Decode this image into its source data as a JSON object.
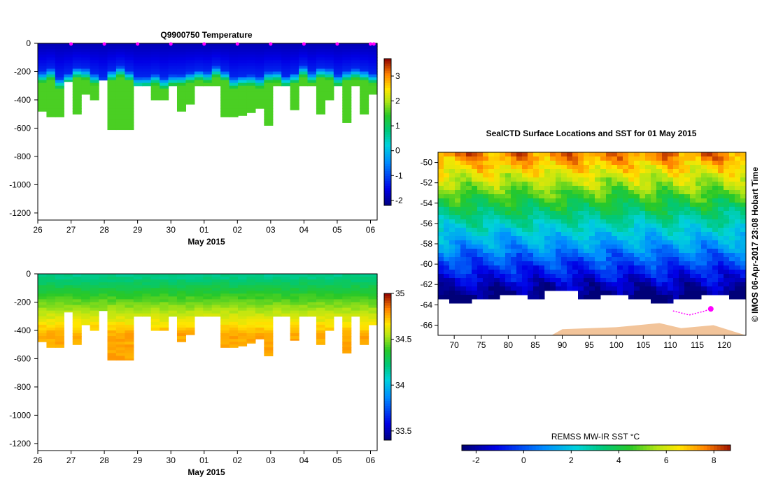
{
  "chart_data": [
    {
      "type": "heatmap",
      "title": "Q9900750  Temperature",
      "xlabel": "May 2015",
      "x_tick_labels": [
        "26",
        "27",
        "28",
        "29",
        "30",
        "01",
        "02",
        "03",
        "04",
        "05",
        "06"
      ],
      "y_tick_labels": [
        "0",
        "-200",
        "-400",
        "-600",
        "-800",
        "-1000",
        "-1200"
      ],
      "ylim": [
        -1250,
        0
      ],
      "colorbar": {
        "variable": "temperature",
        "min": -2.2,
        "max": 3.7,
        "tick_labels": [
          "3",
          "2",
          "1",
          "0",
          "-1",
          "-2"
        ],
        "tick_values": [
          3,
          2,
          1,
          0,
          -1,
          -2
        ]
      },
      "profile_max_depths_m": [
        480,
        520,
        520,
        270,
        500,
        360,
        400,
        260,
        610,
        610,
        610,
        300,
        300,
        400,
        400,
        300,
        480,
        430,
        300,
        300,
        300,
        520,
        520,
        510,
        490,
        460,
        580,
        300,
        300,
        470,
        300,
        300,
        500,
        400,
        300,
        560,
        300,
        500,
        360
      ],
      "surface_markers_x_day": [
        1,
        2,
        3,
        4,
        5,
        6,
        7,
        8,
        9,
        10,
        10.1
      ]
    },
    {
      "type": "heatmap",
      "title": "",
      "xlabel": "May 2015",
      "x_tick_labels": [
        "26",
        "27",
        "28",
        "29",
        "30",
        "01",
        "02",
        "03",
        "04",
        "05",
        "06"
      ],
      "y_tick_labels": [
        "0",
        "-200",
        "-400",
        "-600",
        "-800",
        "-1000",
        "-1200"
      ],
      "ylim": [
        -1250,
        0
      ],
      "colorbar": {
        "variable": "salinity",
        "min": 33.4,
        "max": 35.0,
        "tick_labels": [
          "35",
          "34.5",
          "34",
          "33.5"
        ],
        "tick_values": [
          35,
          34.5,
          34,
          33.5
        ]
      },
      "profile_max_depths_m": [
        480,
        520,
        520,
        270,
        500,
        360,
        400,
        260,
        610,
        610,
        610,
        300,
        300,
        400,
        400,
        300,
        480,
        430,
        300,
        300,
        300,
        520,
        520,
        510,
        490,
        460,
        580,
        300,
        300,
        470,
        300,
        300,
        500,
        400,
        300,
        560,
        300,
        500,
        360
      ]
    },
    {
      "type": "heatmap",
      "title": "SealCTD Surface Locations and SST for 01 May 2015",
      "xlabel": "",
      "ylabel": "",
      "x_tick_labels": [
        "70",
        "75",
        "80",
        "85",
        "90",
        "95",
        "100",
        "105",
        "110",
        "115",
        "120"
      ],
      "y_tick_labels": [
        "-50",
        "-52",
        "-54",
        "-56",
        "-58",
        "-60",
        "-62",
        "-64",
        "-66"
      ],
      "xlim": [
        67,
        124
      ],
      "ylim": [
        -67,
        -49
      ],
      "credit": "© IMOS 06-Apr-2017 23:08 Hobart Time",
      "colorbar": {
        "label": "REMSS MW-IR SST °C",
        "min": -2.6,
        "max": 8.7,
        "tick_labels": [
          "-2",
          "0",
          "2",
          "4",
          "6",
          "8"
        ],
        "tick_values": [
          -2,
          0,
          2,
          4,
          6,
          8
        ]
      },
      "seal_track": [
        {
          "lon": 110.5,
          "lat": -64.6
        },
        {
          "lon": 112.0,
          "lat": -64.8
        },
        {
          "lon": 113.5,
          "lat": -65.0
        },
        {
          "lon": 115.0,
          "lat": -64.8
        },
        {
          "lon": 116.5,
          "lat": -64.6
        },
        {
          "lon": 117.3,
          "lat": -64.4
        }
      ],
      "latest_position": {
        "lon": 117.5,
        "lat": -64.4
      }
    }
  ],
  "colors": {
    "marker": "#ff00ff",
    "land": "#f2c49a",
    "ice_no_data": "#ffffff"
  }
}
